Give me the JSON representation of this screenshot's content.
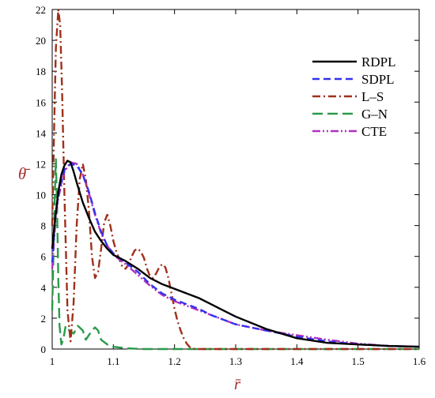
{
  "chart_data": {
    "type": "line",
    "xlabel": "r̄",
    "ylabel": "θ̄",
    "xlim": [
      1.0,
      1.6
    ],
    "ylim": [
      0,
      22
    ],
    "xticks": [
      "1",
      "1.1",
      "1.2",
      "1.3",
      "1.4",
      "1.5",
      "1.6"
    ],
    "yticks": [
      "0",
      "2",
      "4",
      "6",
      "8",
      "10",
      "12",
      "14",
      "16",
      "18",
      "20",
      "22"
    ],
    "grid": false,
    "legend_position": "top-right",
    "series": [
      {
        "name": "RDPL",
        "color": "#000000",
        "dash": "solid",
        "x": [
          1.0,
          1.005,
          1.01,
          1.015,
          1.02,
          1.025,
          1.03,
          1.035,
          1.04,
          1.05,
          1.06,
          1.07,
          1.08,
          1.09,
          1.1,
          1.12,
          1.14,
          1.16,
          1.18,
          1.2,
          1.22,
          1.24,
          1.26,
          1.28,
          1.3,
          1.35,
          1.4,
          1.45,
          1.5,
          1.55,
          1.6
        ],
        "y": [
          6.5,
          8.5,
          10.2,
          11.3,
          11.9,
          12.2,
          12.1,
          11.5,
          10.8,
          9.5,
          8.5,
          7.6,
          7.0,
          6.5,
          6.1,
          5.7,
          5.2,
          4.6,
          4.2,
          3.9,
          3.6,
          3.3,
          2.9,
          2.5,
          2.1,
          1.3,
          0.7,
          0.4,
          0.3,
          0.2,
          0.15
        ]
      },
      {
        "name": "SDPL",
        "color": "#3333ee",
        "dash": "dashed",
        "x": [
          1.0,
          1.005,
          1.01,
          1.02,
          1.03,
          1.04,
          1.05,
          1.06,
          1.07,
          1.08,
          1.09,
          1.1,
          1.12,
          1.14,
          1.16,
          1.18,
          1.2,
          1.22,
          1.24,
          1.26,
          1.28,
          1.3,
          1.35,
          1.4,
          1.45,
          1.5,
          1.55,
          1.6
        ],
        "y": [
          5.6,
          8.5,
          10.0,
          11.6,
          12.0,
          11.9,
          11.3,
          10.2,
          8.8,
          7.6,
          6.7,
          6.2,
          5.6,
          5.0,
          4.2,
          3.6,
          3.2,
          2.9,
          2.6,
          2.2,
          1.9,
          1.6,
          1.2,
          0.8,
          0.5,
          0.3,
          0.2,
          0.15
        ]
      },
      {
        "name": "L–S",
        "color": "#a0301a",
        "dash": "dashdot",
        "x": [
          1.0,
          1.003,
          1.006,
          1.01,
          1.013,
          1.016,
          1.02,
          1.025,
          1.03,
          1.035,
          1.04,
          1.045,
          1.05,
          1.055,
          1.06,
          1.065,
          1.07,
          1.075,
          1.08,
          1.085,
          1.09,
          1.095,
          1.1,
          1.105,
          1.11,
          1.115,
          1.12,
          1.125,
          1.13,
          1.135,
          1.14,
          1.145,
          1.15,
          1.155,
          1.16,
          1.165,
          1.17,
          1.175,
          1.18,
          1.185,
          1.19,
          1.195,
          1.2,
          1.205,
          1.21,
          1.215,
          1.22,
          1.225,
          1.23,
          1.235,
          1.24,
          1.25,
          1.3,
          1.4,
          1.5,
          1.6
        ],
        "y": [
          8.0,
          14.0,
          19.5,
          22.0,
          21.0,
          17.0,
          10.0,
          2.5,
          0.5,
          3.0,
          8.0,
          11.0,
          12.0,
          11.0,
          9.0,
          6.0,
          4.6,
          5.0,
          6.5,
          8.2,
          8.7,
          8.0,
          7.0,
          6.3,
          5.8,
          5.3,
          5.2,
          5.5,
          6.0,
          6.4,
          6.5,
          6.3,
          5.9,
          5.2,
          4.7,
          4.6,
          4.9,
          5.3,
          5.5,
          5.3,
          4.6,
          3.6,
          2.6,
          1.8,
          1.2,
          0.7,
          0.35,
          0.12,
          0.03,
          0.0,
          0.0,
          0.0,
          0.0,
          0.0,
          0.0,
          0.0
        ]
      },
      {
        "name": "G–N",
        "color": "#2a9a4a",
        "dash": "longdash",
        "x": [
          1.0,
          1.002,
          1.004,
          1.006,
          1.008,
          1.01,
          1.012,
          1.015,
          1.018,
          1.022,
          1.028,
          1.035,
          1.042,
          1.05,
          1.055,
          1.06,
          1.065,
          1.07,
          1.075,
          1.08,
          1.09,
          1.1,
          1.12,
          1.15,
          1.2,
          1.3,
          1.4,
          1.5,
          1.6
        ],
        "y": [
          2.5,
          6.0,
          9.5,
          12.3,
          9.0,
          4.5,
          1.5,
          0.3,
          0.6,
          1.5,
          1.2,
          1.0,
          1.5,
          1.2,
          0.6,
          0.9,
          1.2,
          1.4,
          1.2,
          0.6,
          0.3,
          0.15,
          0.05,
          0.0,
          0.0,
          0.0,
          0.0,
          0.0,
          0.0
        ]
      },
      {
        "name": "CTE",
        "color": "#b030c0",
        "dash": "dashdotdot",
        "x": [
          1.0,
          1.005,
          1.01,
          1.02,
          1.03,
          1.04,
          1.05,
          1.06,
          1.07,
          1.08,
          1.09,
          1.1,
          1.12,
          1.14,
          1.16,
          1.18,
          1.2,
          1.22,
          1.24,
          1.26,
          1.28,
          1.3,
          1.35,
          1.4,
          1.45,
          1.5,
          1.55,
          1.6
        ],
        "y": [
          5.2,
          8.2,
          9.8,
          11.5,
          12.1,
          12.0,
          11.3,
          10.1,
          8.7,
          7.5,
          6.7,
          6.1,
          5.5,
          4.8,
          4.1,
          3.5,
          3.1,
          2.8,
          2.5,
          2.2,
          1.9,
          1.6,
          1.2,
          0.9,
          0.6,
          0.35,
          0.2,
          0.15
        ]
      }
    ]
  }
}
